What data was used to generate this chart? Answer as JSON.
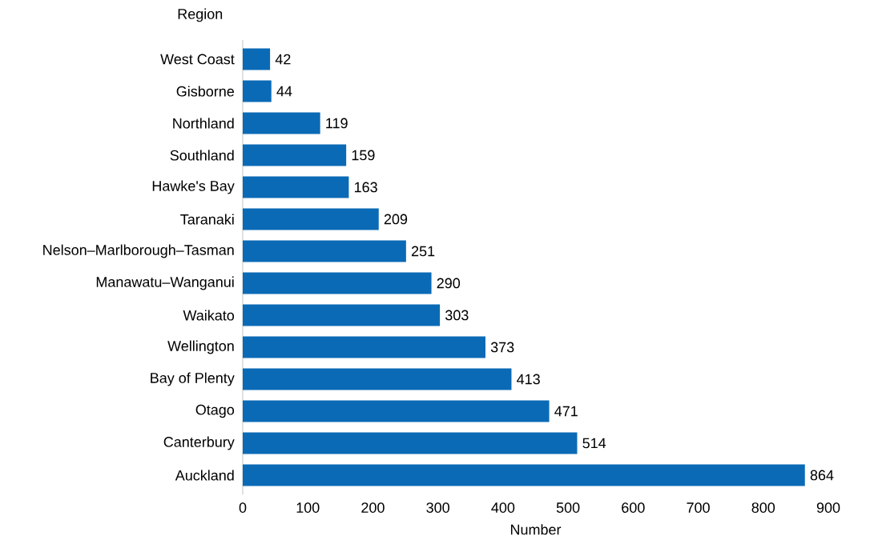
{
  "chart_data": {
    "type": "bar",
    "orientation": "horizontal",
    "ylabel": "Region",
    "xlabel": "Number",
    "categories": [
      "West Coast",
      "Gisborne",
      "Northland",
      "Southland",
      "Hawke's Bay",
      "Taranaki",
      "Nelson–Marlborough–Tasman",
      "Manawatu–Wanganui",
      "Waikato",
      "Wellington",
      "Bay of Plenty",
      "Otago",
      "Canterbury",
      "Auckland"
    ],
    "values": [
      42,
      44,
      119,
      159,
      163,
      209,
      251,
      290,
      303,
      373,
      413,
      471,
      514,
      864
    ],
    "color": "#0b6ab5",
    "xlim": [
      0,
      900
    ],
    "xticks": [
      0,
      100,
      200,
      300,
      400,
      500,
      600,
      700,
      800,
      900
    ],
    "data_labels": true,
    "grid": false
  }
}
